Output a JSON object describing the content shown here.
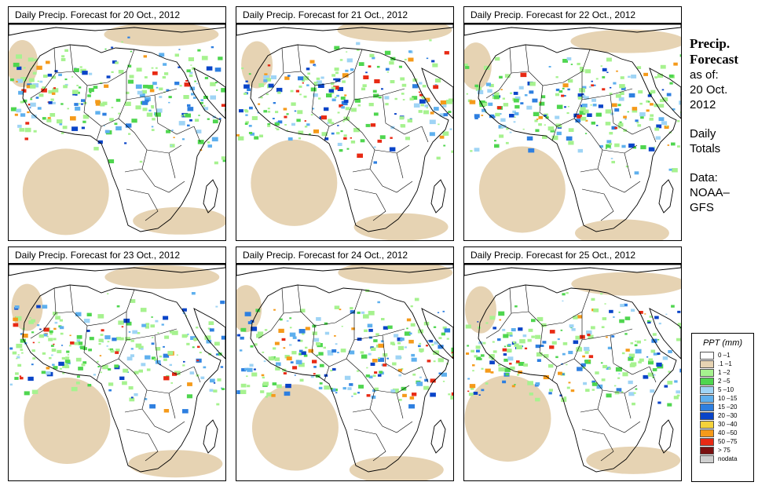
{
  "panels": [
    {
      "title": "Daily Precip. Forecast for  20 Oct., 2012",
      "day": 0
    },
    {
      "title": "Daily Precip. Forecast for  21 Oct., 2012",
      "day": 1
    },
    {
      "title": "Daily Precip. Forecast for  22 Oct., 2012",
      "day": 2
    },
    {
      "title": "Daily Precip. Forecast for  23 Oct., 2012",
      "day": 3
    },
    {
      "title": "Daily Precip. Forecast for  24 Oct., 2012",
      "day": 4
    },
    {
      "title": "Daily Precip. Forecast for  25 Oct., 2012",
      "day": 5
    }
  ],
  "side": {
    "heading_1": "Precip.",
    "heading_2": "Forecast",
    "asof_1": "as of:",
    "asof_2": "20 Oct.",
    "asof_3": "2012",
    "totals_1": "Daily",
    "totals_2": "Totals",
    "data_1": "Data:",
    "data_2": "NOAA–",
    "data_3": "GFS"
  },
  "legend": {
    "title": "PPT (mm)",
    "items": [
      {
        "label": "0 –1",
        "color": "#ffffff"
      },
      {
        "label": ".1 –1",
        "color": "#e6d3b3"
      },
      {
        "label": "1 –2",
        "color": "#a6f28f"
      },
      {
        "label": "2 –5",
        "color": "#4fd64f"
      },
      {
        "label": "5 –10",
        "color": "#9fd4f5"
      },
      {
        "label": "10 –15",
        "color": "#5fb0ee"
      },
      {
        "label": "15 –20",
        "color": "#2e7fe0"
      },
      {
        "label": "20 –30",
        "color": "#0a44c8"
      },
      {
        "label": "30 –40",
        "color": "#f5d23a"
      },
      {
        "label": "40 –50",
        "color": "#f59a1a"
      },
      {
        "label": "50 –75",
        "color": "#e82a14"
      },
      {
        "label": "> 75",
        "color": "#7a1010"
      },
      {
        "label": "nodata",
        "color": "#cfcfcf"
      }
    ]
  }
}
